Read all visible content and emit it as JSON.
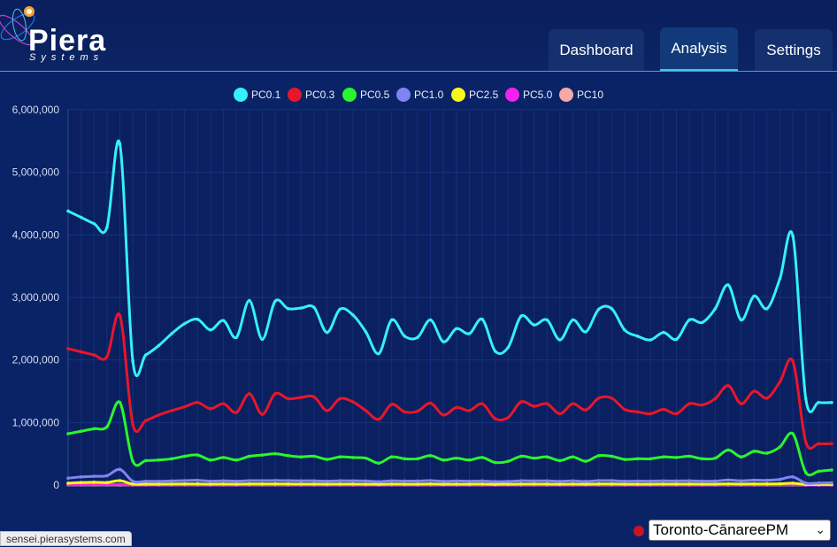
{
  "app": {
    "logo_text": "Piera",
    "logo_sub": "Systems"
  },
  "nav": {
    "tabs": [
      {
        "label": "Dashboard"
      },
      {
        "label": "Analysis",
        "active": true
      },
      {
        "label": "Settings"
      }
    ]
  },
  "status_bar": {
    "url": "sensei.pierasystems.com"
  },
  "site_selector": {
    "value": "Toronto-CānareePM"
  },
  "colors": {
    "background": "#0a2366",
    "header": "#0b2463"
  },
  "chart_data": {
    "type": "line",
    "ylim": [
      0,
      6000000
    ],
    "y_ticks": [
      "0",
      "1,000,000",
      "2,000,000",
      "3,000,000",
      "4,000,000",
      "5,000,000",
      "6,000,000"
    ],
    "grid": true,
    "legend_position": "top",
    "series": [
      {
        "name": "PC0.1",
        "color": "#35f0f7",
        "values": [
          4380000,
          4280000,
          4180000,
          4120000,
          5450000,
          1980000,
          2080000,
          2230000,
          2420000,
          2580000,
          2650000,
          2480000,
          2630000,
          2360000,
          2950000,
          2330000,
          2940000,
          2820000,
          2830000,
          2840000,
          2440000,
          2810000,
          2720000,
          2450000,
          2100000,
          2640000,
          2380000,
          2360000,
          2640000,
          2290000,
          2500000,
          2420000,
          2650000,
          2140000,
          2200000,
          2700000,
          2560000,
          2640000,
          2320000,
          2640000,
          2450000,
          2810000,
          2820000,
          2480000,
          2380000,
          2320000,
          2440000,
          2330000,
          2640000,
          2600000,
          2820000,
          3200000,
          2640000,
          3020000,
          2820000,
          3300000,
          3980000,
          1380000,
          1320000,
          1320000
        ]
      },
      {
        "name": "PC0.3",
        "color": "#e8162b",
        "values": [
          2180000,
          2130000,
          2080000,
          2050000,
          2710000,
          970000,
          1030000,
          1120000,
          1190000,
          1250000,
          1320000,
          1220000,
          1300000,
          1160000,
          1460000,
          1130000,
          1460000,
          1380000,
          1400000,
          1410000,
          1190000,
          1380000,
          1330000,
          1190000,
          1050000,
          1290000,
          1170000,
          1180000,
          1310000,
          1120000,
          1240000,
          1190000,
          1300000,
          1060000,
          1080000,
          1330000,
          1260000,
          1300000,
          1140000,
          1300000,
          1200000,
          1390000,
          1390000,
          1210000,
          1170000,
          1140000,
          1210000,
          1140000,
          1300000,
          1280000,
          1380000,
          1590000,
          1300000,
          1500000,
          1390000,
          1650000,
          1980000,
          690000,
          660000,
          660000
        ]
      },
      {
        "name": "PC0.5",
        "color": "#2af52e",
        "values": [
          820000,
          860000,
          900000,
          930000,
          1320000,
          380000,
          390000,
          400000,
          420000,
          460000,
          480000,
          400000,
          440000,
          400000,
          460000,
          480000,
          500000,
          470000,
          450000,
          460000,
          410000,
          450000,
          440000,
          430000,
          350000,
          450000,
          420000,
          420000,
          470000,
          400000,
          430000,
          400000,
          440000,
          360000,
          380000,
          460000,
          430000,
          450000,
          390000,
          450000,
          380000,
          470000,
          460000,
          410000,
          420000,
          420000,
          450000,
          440000,
          460000,
          420000,
          430000,
          560000,
          450000,
          540000,
          510000,
          610000,
          820000,
          200000,
          220000,
          240000
        ]
      },
      {
        "name": "PC1.0",
        "color": "#8083f3",
        "values": [
          110000,
          130000,
          140000,
          150000,
          250000,
          60000,
          60000,
          60000,
          65000,
          70000,
          75000,
          62000,
          68000,
          62000,
          70000,
          70000,
          72000,
          70000,
          68000,
          68000,
          62000,
          68000,
          67000,
          65000,
          55000,
          67000,
          64000,
          64000,
          70000,
          60000,
          65000,
          62000,
          66000,
          56000,
          58000,
          68000,
          66000,
          67000,
          60000,
          67000,
          58000,
          70000,
          70000,
          62000,
          63000,
          63000,
          67000,
          65000,
          68000,
          63000,
          64000,
          80000,
          67000,
          78000,
          75000,
          90000,
          130000,
          30000,
          32000,
          35000
        ]
      },
      {
        "name": "PC2.5",
        "color": "#f7f71c",
        "values": [
          30000,
          40000,
          45000,
          40000,
          70000,
          15000,
          15000,
          15000,
          16000,
          17000,
          18000,
          15000,
          16000,
          15000,
          17000,
          17000,
          18000,
          17000,
          16000,
          16000,
          15000,
          16000,
          16000,
          15000,
          13000,
          16000,
          15000,
          15000,
          17000,
          14000,
          15000,
          15000,
          16000,
          13000,
          14000,
          16000,
          16000,
          16000,
          14000,
          16000,
          14000,
          17000,
          17000,
          15000,
          15000,
          15000,
          16000,
          16000,
          16000,
          15000,
          15000,
          19000,
          16000,
          18000,
          18000,
          21000,
          30000,
          8000,
          8000,
          9000
        ]
      },
      {
        "name": "PC5.0",
        "color": "#f223f0",
        "values": [
          5000,
          6000,
          7000,
          6000,
          10000,
          2000,
          2000,
          2000,
          2000,
          2000,
          3000,
          2000,
          2000,
          2000,
          3000,
          3000,
          3000,
          3000,
          2000,
          2000,
          2000,
          2000,
          2000,
          2000,
          2000,
          2000,
          2000,
          2000,
          3000,
          2000,
          2000,
          2000,
          2000,
          2000,
          2000,
          2000,
          2000,
          2000,
          2000,
          2000,
          2000,
          3000,
          3000,
          2000,
          2000,
          2000,
          2000,
          2000,
          2000,
          2000,
          2000,
          3000,
          2000,
          3000,
          3000,
          3000,
          5000,
          1000,
          1000,
          1000
        ]
      },
      {
        "name": "PC10",
        "color": "#f7a9a8",
        "values": [
          1000,
          1000,
          1000,
          1000,
          2000,
          500,
          500,
          500,
          500,
          500,
          500,
          500,
          500,
          500,
          500,
          500,
          500,
          500,
          500,
          500,
          500,
          500,
          500,
          500,
          500,
          500,
          500,
          500,
          500,
          500,
          500,
          500,
          500,
          500,
          500,
          500,
          500,
          500,
          500,
          500,
          500,
          500,
          500,
          500,
          500,
          500,
          500,
          500,
          500,
          500,
          500,
          500,
          500,
          500,
          500,
          500,
          1000,
          300,
          300,
          300
        ]
      }
    ]
  }
}
